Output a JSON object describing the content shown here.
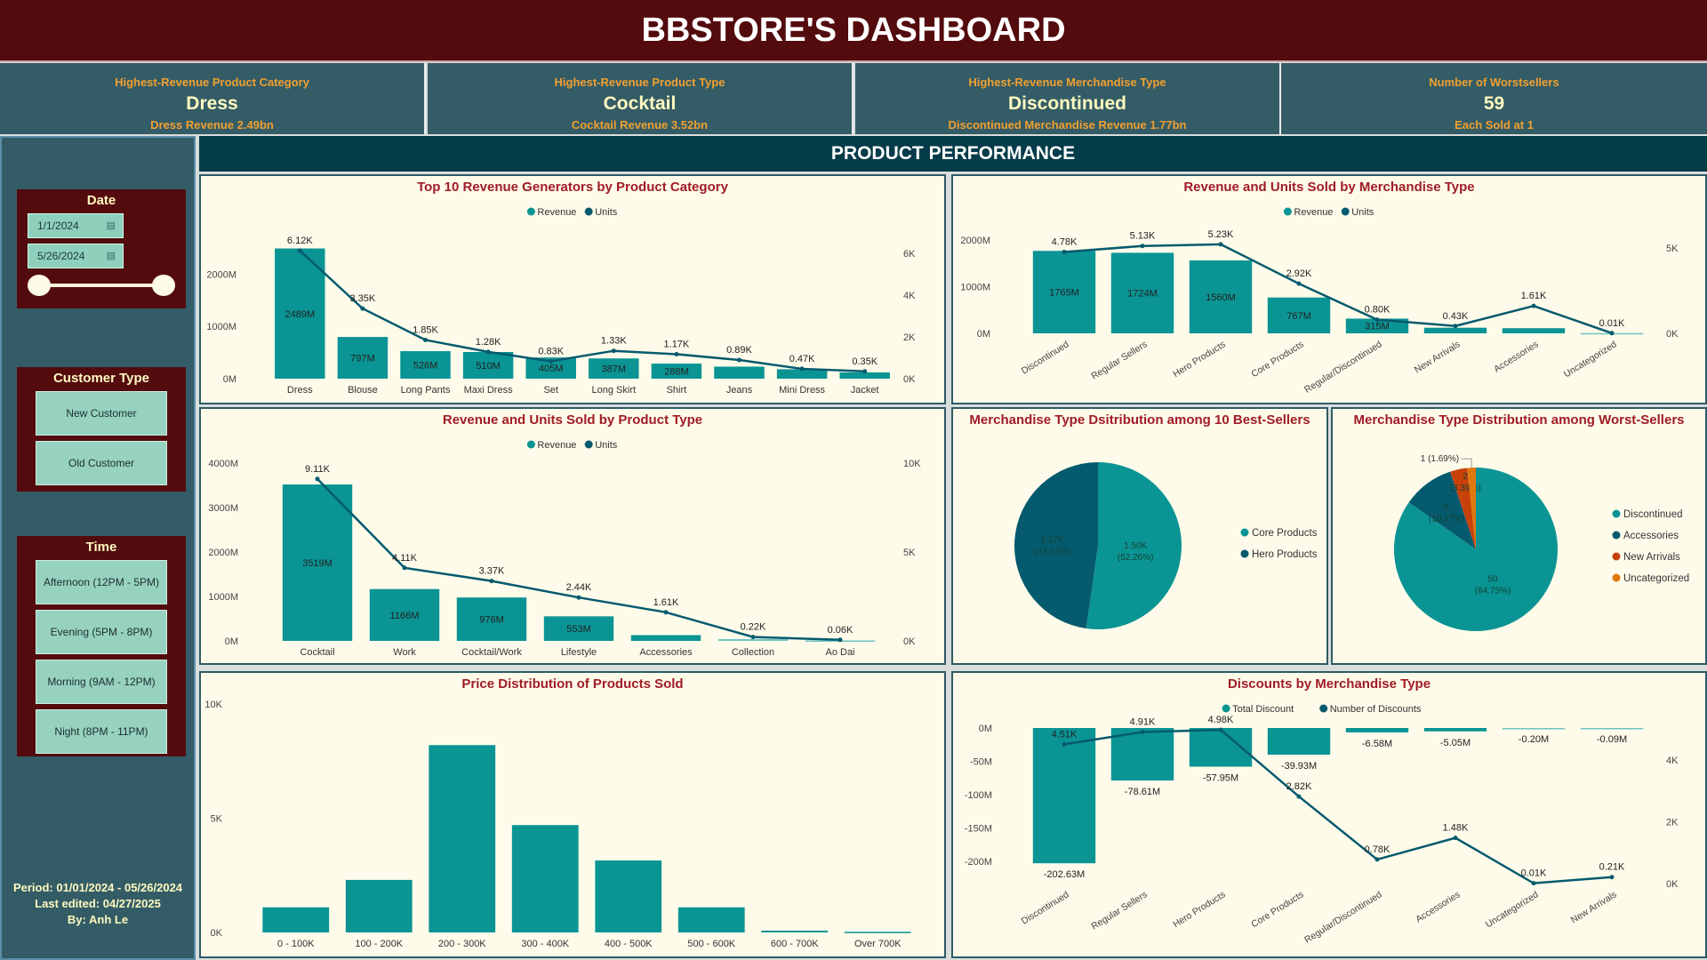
{
  "header": {
    "title": "BBSTORE'S DASHBOARD"
  },
  "kpis": [
    {
      "label": "Highest-Revenue Product Category",
      "value": "Dress",
      "sub": "Dress Revenue 2.49bn"
    },
    {
      "label": "Highest-Revenue Product Type",
      "value": "Cocktail",
      "sub": "Cocktail Revenue 3.52bn"
    },
    {
      "label": "Highest-Revenue Merchandise Type",
      "value": "Discontinued",
      "sub": "Discontinued Merchandise Revenue 1.77bn"
    },
    {
      "label": "Number of Worstsellers",
      "value": "59",
      "sub": "Each Sold at 1"
    }
  ],
  "sidebar": {
    "date": {
      "title": "Date",
      "start": "1/1/2024",
      "end": "5/26/2024",
      "range_fraction": [
        0,
        1
      ]
    },
    "customer_type": {
      "title": "Customer Type",
      "options": [
        "New Customer",
        "Old Customer"
      ]
    },
    "time": {
      "title": "Time",
      "options": [
        "Afternoon (12PM - 5PM)",
        "Evening (5PM - 8PM)",
        "Morning (9AM - 12PM)",
        "Night (8PM - 11PM)"
      ]
    },
    "footer": [
      "Period: 01/01/2024 - 05/26/2024",
      "Last edited: 04/27/2025",
      "By: Anh Le"
    ]
  },
  "banner": "PRODUCT PERFORMANCE",
  "colors": {
    "header": "#530b0d",
    "kpi": "#345c66",
    "bar": "#0b9494",
    "line": "#065a6e",
    "orange_red": "#c8410a",
    "orange": "#e0780e",
    "title": "#a01c24"
  },
  "chart_data": [
    {
      "id": "c1",
      "type": "bar+line",
      "title": "Top 10 Revenue Generators by Product Category",
      "legend": [
        "Revenue",
        "Units"
      ],
      "categories": [
        "Dress",
        "Blouse",
        "Long Pants",
        "Maxi Dress",
        "Set",
        "Long Skirt",
        "Shirt",
        "Jeans",
        "Mini Dress",
        "Jacket"
      ],
      "series": [
        {
          "name": "Revenue",
          "unit": "M",
          "values": [
            2489,
            797,
            526,
            510,
            405,
            387,
            288,
            230,
            180,
            120
          ],
          "labels": [
            "2489M",
            "797M",
            "526M",
            "510M",
            "405M",
            "387M",
            "288M",
            "",
            "",
            ""
          ]
        },
        {
          "name": "Units",
          "unit": "K",
          "values": [
            6.12,
            3.35,
            1.85,
            1.28,
            0.83,
            1.33,
            1.17,
            0.89,
            0.47,
            0.35
          ],
          "labels": [
            "6.12K",
            "3.35K",
            "1.85K",
            "1.28K",
            "0.83K",
            "1.33K",
            "1.17K",
            "0.89K",
            "0.47K",
            "0.35K"
          ]
        }
      ],
      "y_left": {
        "range": [
          0,
          2600
        ],
        "ticks": [
          0,
          1000,
          2000
        ],
        "tick_labels": [
          "0M",
          "1000M",
          "2000M"
        ]
      },
      "y_right": {
        "range": [
          0,
          6.5
        ],
        "ticks": [
          0,
          2,
          4,
          6
        ],
        "tick_labels": [
          "0K",
          "2K",
          "4K",
          "6K"
        ]
      }
    },
    {
      "id": "c2",
      "type": "bar+line",
      "title": "Revenue and Units Sold by Merchandise Type",
      "legend": [
        "Revenue",
        "Units"
      ],
      "rotate_x": true,
      "categories": [
        "Discontinued",
        "Regular Sellers",
        "Hero Products",
        "Core Products",
        "Regular/Discontinued",
        "New Arrivals",
        "Accessories",
        "Uncategorized"
      ],
      "series": [
        {
          "name": "Revenue",
          "unit": "M",
          "values": [
            1765,
            1724,
            1560,
            767,
            315,
            120,
            110,
            5
          ],
          "labels": [
            "1765M",
            "1724M",
            "1560M",
            "767M",
            "315M",
            "",
            "",
            ""
          ]
        },
        {
          "name": "Units",
          "unit": "K",
          "values": [
            4.78,
            5.13,
            5.23,
            2.92,
            0.8,
            0.43,
            1.61,
            0.01
          ],
          "labels": [
            "4.78K",
            "5.13K",
            "5.23K",
            "2.92K",
            "0.80K",
            "0.43K",
            "1.61K",
            "0.01K"
          ]
        }
      ],
      "y_left": {
        "range": [
          0,
          2150
        ],
        "ticks": [
          0,
          1000,
          2000
        ],
        "tick_labels": [
          "0M",
          "1000M",
          "2000M"
        ]
      },
      "y_right": {
        "range": [
          0,
          5.9
        ],
        "ticks": [
          0,
          5
        ],
        "tick_labels": [
          "0K",
          "5K"
        ]
      }
    },
    {
      "id": "c3",
      "type": "bar+line",
      "title": "Revenue and Units Sold by Product Type",
      "legend": [
        "Revenue",
        "Units"
      ],
      "categories": [
        "Cocktail",
        "Work",
        "Cocktail/Work",
        "Lifestyle",
        "Accessories",
        "Collection",
        "Ao Dai"
      ],
      "series": [
        {
          "name": "Revenue",
          "unit": "M",
          "values": [
            3519,
            1166,
            976,
            553,
            130,
            40,
            10
          ],
          "labels": [
            "3519M",
            "1166M",
            "976M",
            "553M",
            "",
            "",
            ""
          ]
        },
        {
          "name": "Units",
          "unit": "K",
          "values": [
            9.11,
            4.11,
            3.37,
            2.44,
            1.61,
            0.22,
            0.06
          ],
          "labels": [
            "9.11K",
            "4.11K",
            "3.37K",
            "2.44K",
            "1.61K",
            "0.22K",
            "0.06K"
          ]
        }
      ],
      "y_left": {
        "range": [
          0,
          4100
        ],
        "ticks": [
          0,
          1000,
          2000,
          3000,
          4000
        ],
        "tick_labels": [
          "0M",
          "1000M",
          "2000M",
          "3000M",
          "4000M"
        ]
      },
      "y_right": {
        "range": [
          0,
          10.25
        ],
        "ticks": [
          0,
          5,
          10
        ],
        "tick_labels": [
          "0K",
          "5K",
          "10K"
        ]
      }
    },
    {
      "id": "c4",
      "type": "bar",
      "title": "Price Distribution of Products Sold",
      "categories": [
        "0 - 100K",
        "100 - 200K",
        "200 - 300K",
        "300 - 400K",
        "400 - 500K",
        "500 - 600K",
        "600 - 700K",
        "Over 700K"
      ],
      "series": [
        {
          "name": "Count",
          "values": [
            1100,
            2300,
            8200,
            4700,
            3150,
            1100,
            80,
            30
          ],
          "labels": [
            "",
            "",
            "",
            "",
            "",
            "",
            "",
            ""
          ]
        }
      ],
      "y_left": {
        "range": [
          0,
          10000
        ],
        "ticks": [
          0,
          5000,
          10000
        ],
        "tick_labels": [
          "0K",
          "5K",
          "10K"
        ]
      }
    },
    {
      "id": "c5",
      "type": "bar+line",
      "title": "Discounts by Merchandise Type",
      "legend": [
        "Total Discount",
        "Number of Discounts"
      ],
      "rotate_x": true,
      "categories": [
        "Discontinued",
        "Regular Sellers",
        "Hero Products",
        "Core Products",
        "Regular/Discontinued",
        "Accessories",
        "Uncategorized",
        "New Arrivals"
      ],
      "series": [
        {
          "name": "Total Discount",
          "unit": "M",
          "values": [
            -202.63,
            -78.61,
            -57.95,
            -39.93,
            -6.58,
            -5.05,
            -0.2,
            -0.09
          ],
          "labels": [
            "-202.63M",
            "-78.61M",
            "-57.95M",
            "-39.93M",
            "-6.58M",
            "-5.05M",
            "-0.20M",
            "-0.09M"
          ]
        },
        {
          "name": "Number of Discounts",
          "unit": "K",
          "values": [
            4.51,
            4.91,
            4.98,
            2.82,
            0.78,
            1.48,
            0.01,
            0.21
          ],
          "labels": [
            "4.51K",
            "4.91K",
            "4.98K",
            "2.82K",
            "0.78K",
            "1.48K",
            "0.01K",
            "0.21K"
          ]
        }
      ],
      "y_left": {
        "range": [
          -233,
          0
        ],
        "ticks": [
          0,
          -50,
          -100,
          -150,
          -200
        ],
        "tick_labels": [
          "0M",
          "-50M",
          "-100M",
          "-150M",
          "-200M"
        ]
      },
      "y_right": {
        "range": [
          0,
          5.04
        ],
        "ticks": [
          0,
          2,
          4
        ],
        "tick_labels": [
          "0K",
          "2K",
          "4K"
        ]
      }
    },
    {
      "id": "c6",
      "type": "pie",
      "title": "Merchandise Type Dsitribution among 10 Best-Sellers",
      "slices": [
        {
          "name": "Core Products",
          "value": 1.5,
          "label": "1.50K",
          "pct": "(52.26%)",
          "color": "#0b9494"
        },
        {
          "name": "Hero Products",
          "value": 1.37,
          "label": "1.37K",
          "pct": "(47.74%)",
          "color": "#065a6e"
        }
      ]
    },
    {
      "id": "c7",
      "type": "pie",
      "title": "Merchandise Type Distribution among Worst-Sellers",
      "slices": [
        {
          "name": "Discontinued",
          "value": 50,
          "label": "50",
          "pct": "(84.75%)",
          "color": "#0b9494"
        },
        {
          "name": "Accessories",
          "value": 6,
          "label": "6",
          "pct": "(10.17%)",
          "color": "#065a6e"
        },
        {
          "name": "New Arrivals",
          "value": 2,
          "label": "2",
          "pct": "(3.39%)",
          "color": "#c8410a"
        },
        {
          "name": "Uncategorized",
          "value": 1,
          "label": "1 (1.69%)",
          "pct": "",
          "color": "#e0780e"
        }
      ]
    }
  ]
}
